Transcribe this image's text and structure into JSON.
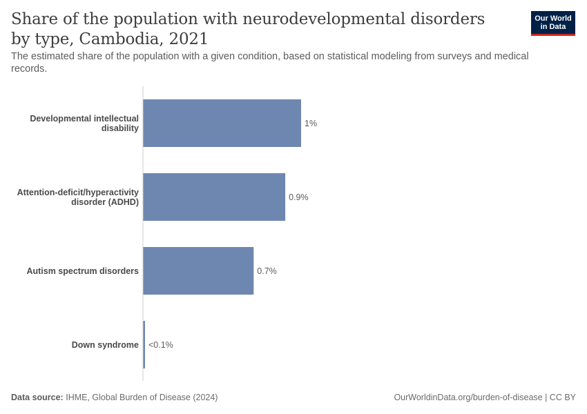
{
  "title": "Share of the population with neurodevelopmental disorders by type, Cambodia, 2021",
  "subtitle": "The estimated share of the population with a given condition, based on statistical modeling from surveys and medical records.",
  "logo": {
    "line1": "Our World",
    "line2": "in Data"
  },
  "footer": {
    "source_label": "Data source:",
    "source_text": "IHME, Global Burden of Disease (2024)",
    "link": "OurWorldinData.org/burden-of-disease | CC BY"
  },
  "colors": {
    "bar": "#6d87b0",
    "axis": "#cccccc"
  },
  "chart_data": {
    "type": "bar",
    "orientation": "horizontal",
    "categories": [
      [
        "Developmental intellectual",
        "disability"
      ],
      [
        "Attention-deficit/hyperactivity",
        "disorder (ADHD)"
      ],
      [
        "Autism spectrum disorders"
      ],
      [
        "Down syndrome"
      ]
    ],
    "values": [
      1.0,
      0.9,
      0.7,
      0.01
    ],
    "value_labels": [
      "1%",
      "0.9%",
      "0.7%",
      "<0.1%"
    ],
    "unit": "%"
  }
}
